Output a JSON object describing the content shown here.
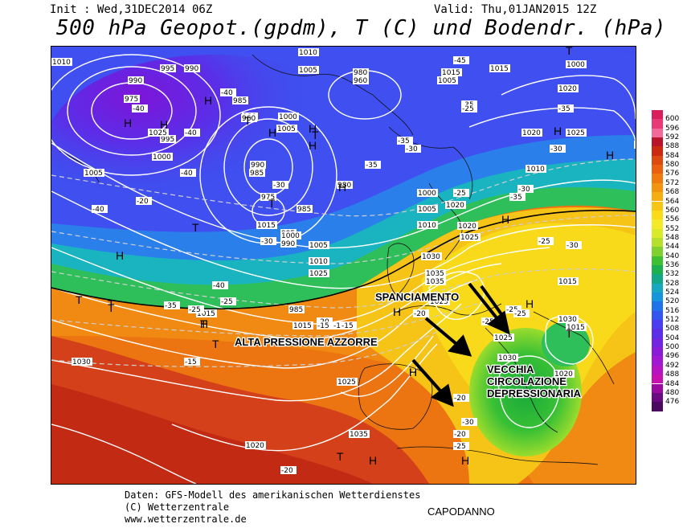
{
  "header": {
    "init": "Init : Wed,31DEC2014 06Z",
    "valid": "Valid: Thu,01JAN2015 12Z",
    "title": "500 hPa Geopot.(gpdm), T (C) und Bodendr. (hPa)"
  },
  "annotations": {
    "spanciamento": "SPANCIAMENTO",
    "alta_pressione": "ALTA PRESSIONE AZZORRE",
    "vecchia_line1": "VECCHIA",
    "vecchia_line2": "CIRCOLAZIONE",
    "vecchia_line3": "DEPRESSIONARIA"
  },
  "pressure_centers": [
    {
      "label": "H"
    },
    {
      "label": "T"
    },
    {
      "label": "T"
    },
    {
      "label": "H"
    },
    {
      "label": "H"
    },
    {
      "label": "T"
    },
    {
      "label": "H"
    },
    {
      "label": "H"
    },
    {
      "label": "H"
    },
    {
      "label": "T"
    },
    {
      "label": "H"
    },
    {
      "label": "T"
    },
    {
      "label": "H"
    },
    {
      "label": "T"
    },
    {
      "label": "T"
    },
    {
      "label": "H"
    },
    {
      "label": "H"
    },
    {
      "label": "H"
    },
    {
      "label": "T"
    },
    {
      "label": "T"
    },
    {
      "label": "T"
    },
    {
      "label": "H"
    },
    {
      "label": "H"
    },
    {
      "label": "H"
    },
    {
      "label": "H"
    },
    {
      "label": "H"
    },
    {
      "label": "T"
    },
    {
      "label": "H"
    },
    {
      "label": "H"
    },
    {
      "label": "T"
    }
  ],
  "isobar_labels": [
    "1010",
    "995",
    "990",
    "975",
    "990",
    "995",
    "1000",
    "1005",
    "980",
    "985",
    "960",
    "1000",
    "1005",
    "990",
    "985",
    "1010",
    "1005",
    "980",
    "975",
    "985",
    "960",
    "995",
    "990",
    "980",
    "1000",
    "1005",
    "1010",
    "1015",
    "1020",
    "1015",
    "1010",
    "1015",
    "1005",
    "1000",
    "1015",
    "1020",
    "1025",
    "1030",
    "1035",
    "1025",
    "1020",
    "1015",
    "1025",
    "1020",
    "1030",
    "1025",
    "1020",
    "1025",
    "1035",
    "1030",
    "1025",
    "1035",
    "1030",
    "1015",
    "1020",
    "1015",
    "1025",
    "1010",
    "1005",
    "1000",
    "990",
    "985",
    "1015",
    "1020"
  ],
  "temperature_labels": [
    "-40",
    "-40",
    "-45",
    "-40",
    "-35",
    "-40",
    "-35",
    "-30",
    "-35",
    "-30",
    "-25",
    "-40",
    "-35",
    "-30",
    "-35",
    "-30",
    "-25",
    "-30",
    "-35",
    "-40",
    "-25",
    "-30",
    "-25",
    "-20",
    "-15",
    "-25",
    "-25",
    "-20",
    "-15",
    "-15",
    "-20",
    "-25",
    "-25",
    "-20",
    "-20",
    "-25",
    "-30",
    "-15",
    "-20"
  ],
  "legend": {
    "colors": [
      "#d81f5b",
      "#e83a76",
      "#f26a9a",
      "#b8142c",
      "#cc2a10",
      "#dd4a10",
      "#e86010",
      "#ef7a10",
      "#f29410",
      "#f5ad12",
      "#f7c515",
      "#fadb1a",
      "#f5ea2a",
      "#d9ea2a",
      "#b7e02d",
      "#80d12f",
      "#3fbf32",
      "#1cb04e",
      "#13a788",
      "#16a8c0",
      "#1694dc",
      "#2173ea",
      "#3456ee",
      "#4a3ef0",
      "#5d2ee8",
      "#7224e0",
      "#8a1cd8",
      "#a018cf",
      "#b614c0",
      "#c812b0",
      "#9a0aa0",
      "#6a0a80",
      "#4a0860"
    ],
    "labels": [
      "600",
      "596",
      "592",
      "588",
      "584",
      "580",
      "576",
      "572",
      "568",
      "564",
      "560",
      "556",
      "552",
      "548",
      "544",
      "540",
      "536",
      "532",
      "528",
      "524",
      "520",
      "516",
      "512",
      "508",
      "504",
      "500",
      "496",
      "492",
      "488",
      "484",
      "480",
      "476"
    ]
  },
  "footer": {
    "line1": "Daten: GFS-Modell des amerikanischen Wetterdienstes",
    "line2": "(C) Wetterzentrale",
    "line3": "www.wetterzentrale.de",
    "capodanno": "CAPODANNO"
  }
}
